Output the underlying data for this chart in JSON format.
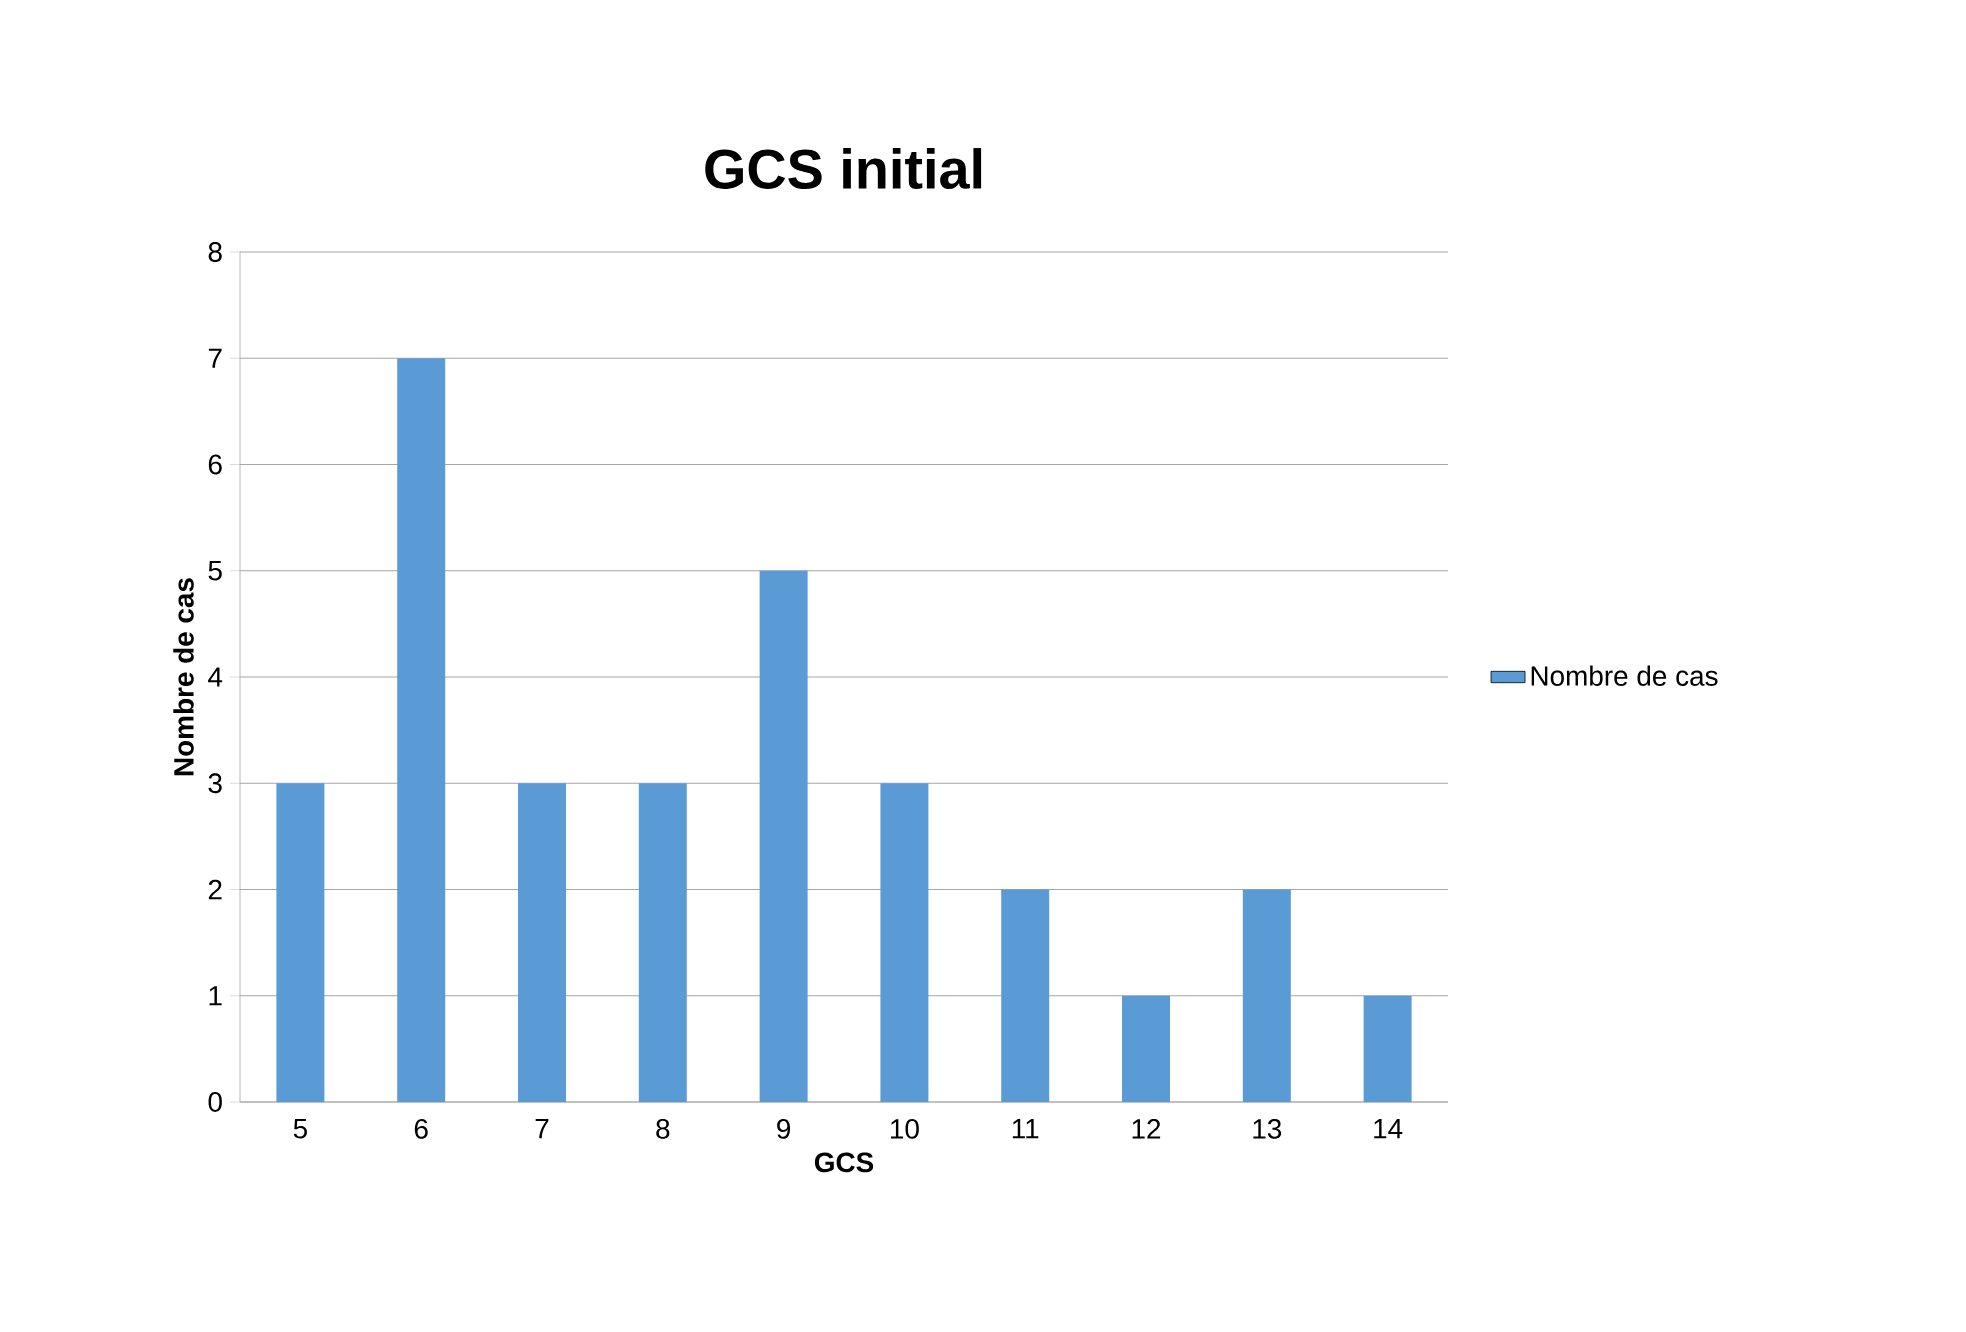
{
  "chart_data": {
    "type": "bar",
    "title": "GCS initial",
    "xlabel": "GCS",
    "ylabel": "Nombre de cas",
    "categories": [
      "5",
      "6",
      "7",
      "8",
      "9",
      "10",
      "11",
      "12",
      "13",
      "14"
    ],
    "series": [
      {
        "name": "Nombre de cas",
        "color": "#5b9bd5",
        "values": [
          3,
          7,
          3,
          3,
          5,
          3,
          2,
          1,
          2,
          1
        ]
      }
    ],
    "ylim": [
      0,
      8
    ],
    "yticks": [
      0,
      1,
      2,
      3,
      4,
      5,
      6,
      7,
      8
    ],
    "grid": "y",
    "legend": "right"
  }
}
